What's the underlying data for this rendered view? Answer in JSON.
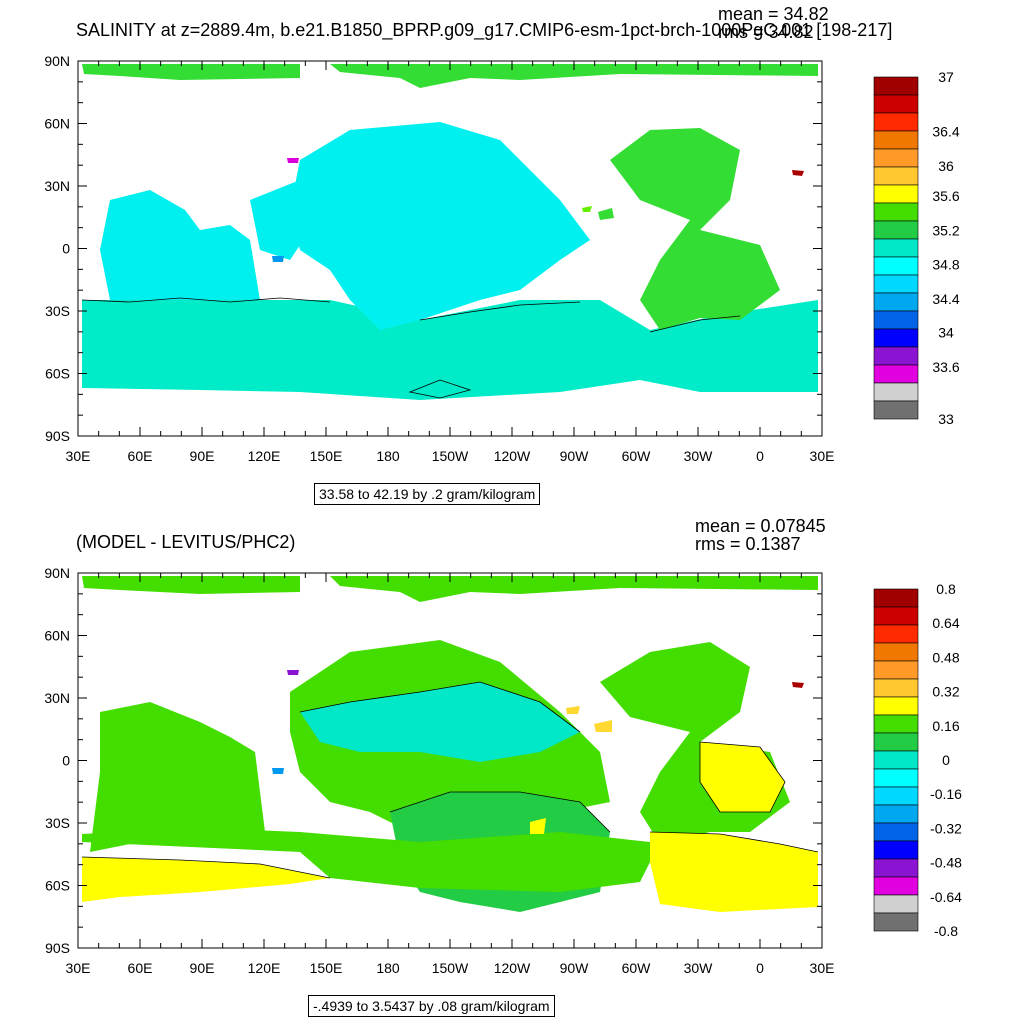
{
  "panels": {
    "top": {
      "title": "SALINITY at z=2889.4m, b.e21.B1850_BPRP.g09_g17.CMIP6-esm-1pct-brch-1000PgC.001 [198-217]",
      "mean_text": "mean = 34.82",
      "rms_text": "rms = 34.82",
      "contour_note": "33.58 to 42.19 by .2 gram/kilogram",
      "colorbar": {
        "labels": [
          "37",
          "36.4",
          "36",
          "35.6",
          "35.2",
          "34.8",
          "34.4",
          "34",
          "33.6",
          "33"
        ],
        "colors": [
          "#a00000",
          "#cc0000",
          "#ff2a00",
          "#f07800",
          "#ff9a28",
          "#ffc830",
          "#ffff00",
          "#44dd00",
          "#22cc44",
          "#00e8c8",
          "#00ffff",
          "#00d8ff",
          "#00a8f0",
          "#0064e8",
          "#0000ff",
          "#8a14d2",
          "#e000e0",
          "#d0d0d0",
          "#707070"
        ]
      }
    },
    "bottom": {
      "title": "(MODEL - LEVITUS/PHC2)",
      "mean_text": "mean = 0.07845",
      "rms_text": "rms = 0.1387",
      "contour_note": "-.4939 to 3.5437 by .08 gram/kilogram",
      "colorbar": {
        "labels": [
          "0.8",
          "0.64",
          "0.48",
          "0.32",
          "0.16",
          "0",
          "-0.16",
          "-0.32",
          "-0.48",
          "-0.64",
          "-0.8"
        ],
        "colors": [
          "#a00000",
          "#cc0000",
          "#ff2a00",
          "#f07800",
          "#ff9a28",
          "#ffc830",
          "#ffff00",
          "#44dd00",
          "#22cc44",
          "#00e8c8",
          "#00ffff",
          "#00d8ff",
          "#00a8f0",
          "#0064e8",
          "#0000ff",
          "#8a14d2",
          "#e000e0",
          "#d0d0d0",
          "#707070"
        ]
      }
    }
  },
  "map_axes": {
    "lat_labels": [
      "90N",
      "60N",
      "30N",
      "0",
      "30S",
      "60S",
      "90S"
    ],
    "lon_labels": [
      "30E",
      "60E",
      "90E",
      "120E",
      "150E",
      "180",
      "150W",
      "120W",
      "90W",
      "60W",
      "30W",
      "0",
      "30E"
    ]
  },
  "colors": {
    "top_ocean_fill": "#00f0f0",
    "top_ocean_south": "#00ecc8",
    "top_atlantic": "#33dd33",
    "bottom_green": "#44dd00",
    "bottom_mid": "#22cc44",
    "bottom_teal": "#00e8c8",
    "bottom_yellow": "#ffff00",
    "land": "#ffffff"
  }
}
